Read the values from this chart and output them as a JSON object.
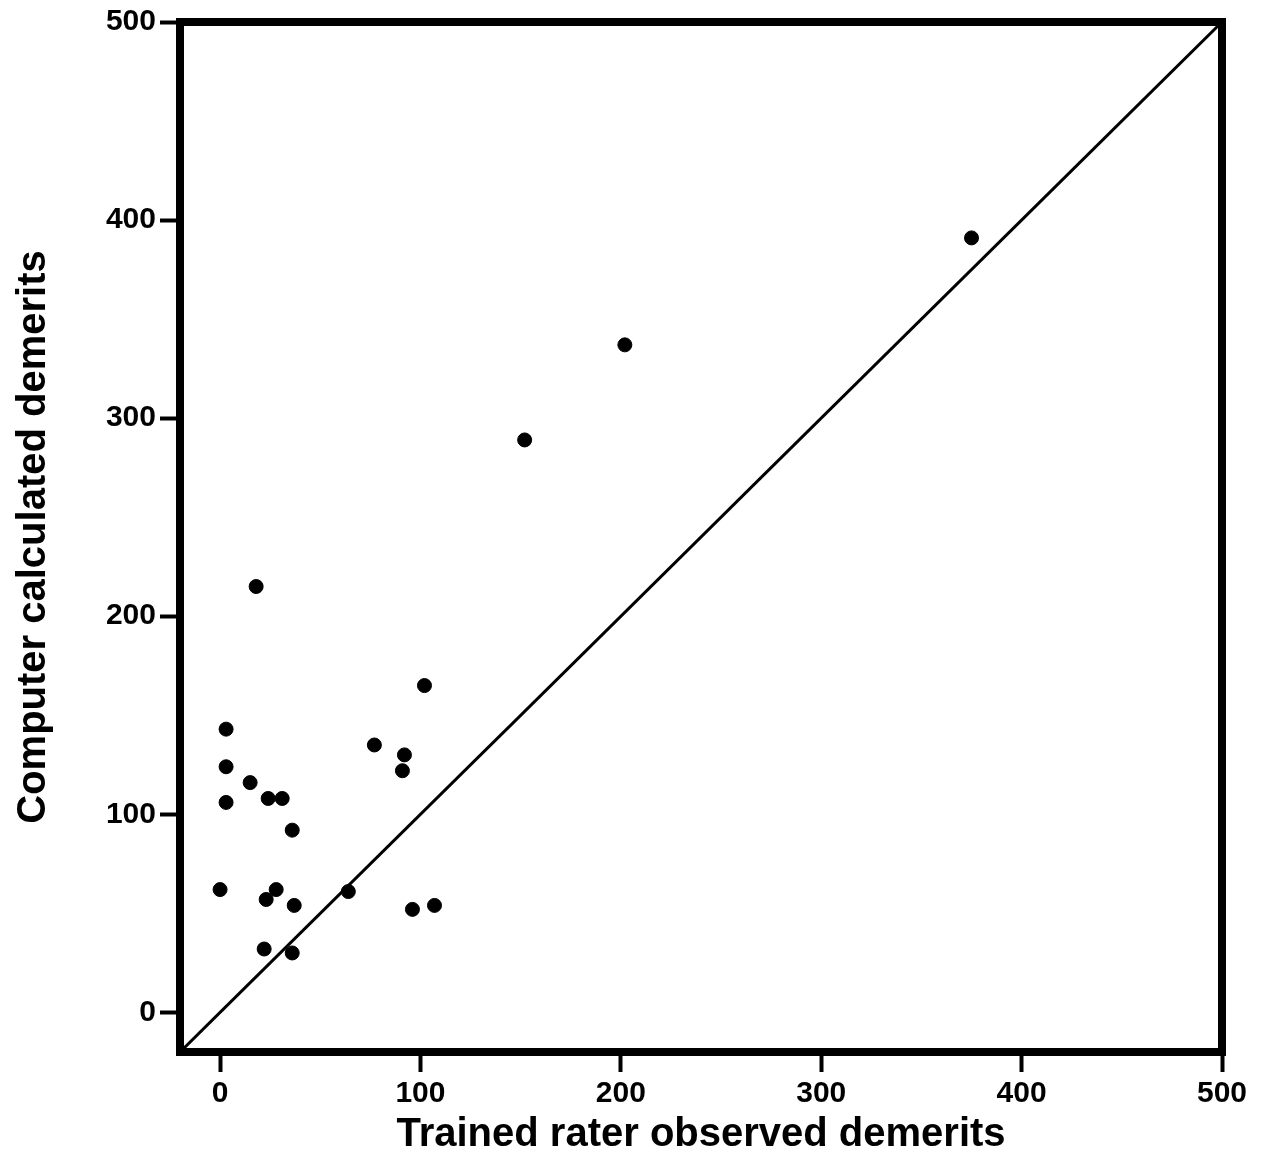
{
  "chart_data": {
    "type": "scatter",
    "xlabel": "Trained rater observed demerits",
    "ylabel": "Computer calculated demerits",
    "xlim": [
      -20,
      500
    ],
    "ylim": [
      -20,
      500
    ],
    "xticks": [
      0,
      100,
      200,
      300,
      400,
      500
    ],
    "yticks": [
      0,
      100,
      200,
      300,
      400,
      500
    ],
    "grid": false,
    "legend": false,
    "series": [
      {
        "type": "scatter",
        "color": "#000000",
        "marker": "circle",
        "x": [
          0,
          3,
          3,
          3,
          18,
          15,
          24,
          31,
          36,
          28,
          23,
          37,
          22,
          36,
          64,
          77,
          92,
          91,
          102,
          96,
          107,
          152,
          202,
          375
        ],
        "values": [
          62,
          143,
          124,
          106,
          215,
          116,
          108,
          108,
          92,
          62,
          57,
          54,
          32,
          30,
          61,
          135,
          130,
          122,
          165,
          52,
          54,
          289,
          337,
          391
        ]
      },
      {
        "type": "line",
        "color": "#000000",
        "x": [
          -20,
          500
        ],
        "values": [
          -20,
          500
        ],
        "line_style": "solid",
        "marker": "none"
      }
    ]
  }
}
